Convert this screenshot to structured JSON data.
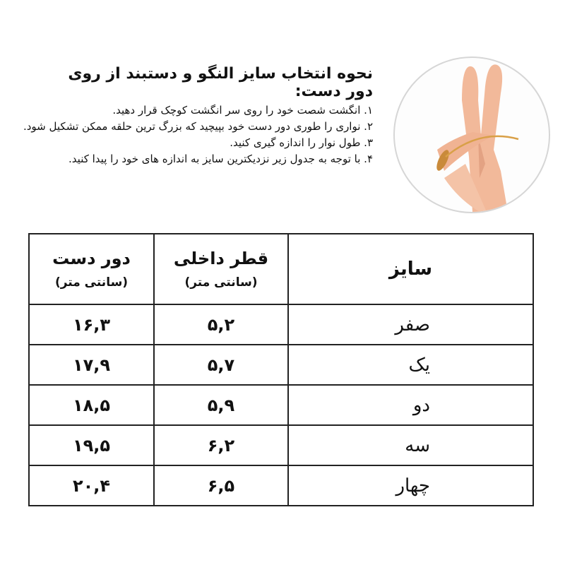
{
  "title": "نحوه انتخاب سایز النگو و دستبند از روی دور دست:",
  "steps": [
    "۱. انگشت شصت خود را روی سر انگشت کوچک قرار دهید.",
    "۲. نواری را طوری دور دست خود بپیچید که بزرگ ترین حلقه ممکن تشکیل شود.",
    "۳. طول نوار را اندازه گیری کنید.",
    "۴. با توجه به جدول زیر نزدیکترین سایز به اندازه های خود را پیدا کنید."
  ],
  "image": {
    "icon": "hand-measuring-photo",
    "skin_color": "#f2b99a"
  },
  "table": {
    "headers": {
      "size": "سایز",
      "inner": "قطر داخلی",
      "inner_unit": "(سانتی متر)",
      "wrist": "دور دست",
      "wrist_unit": "(سانتی متر)"
    },
    "rows": [
      {
        "size": "صفر",
        "inner": "۵,۲",
        "wrist": "۱۶,۳"
      },
      {
        "size": "یک",
        "inner": "۵,۷",
        "wrist": "۱۷,۹"
      },
      {
        "size": "دو",
        "inner": "۵,۹",
        "wrist": "۱۸,۵"
      },
      {
        "size": "سه",
        "inner": "۶,۲",
        "wrist": "۱۹,۵"
      },
      {
        "size": "چهار",
        "inner": "۶,۵",
        "wrist": "۲۰,۴"
      }
    ]
  }
}
